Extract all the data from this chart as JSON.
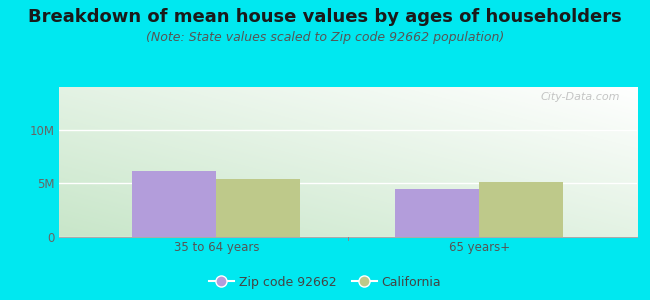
{
  "title": "Breakdown of mean house values by ages of householders",
  "subtitle": "(Note: State values scaled to Zip code 92662 population)",
  "categories": [
    "35 to 64 years",
    "65 years+"
  ],
  "zip_values": [
    6200000,
    4500000
  ],
  "ca_values": [
    5400000,
    5100000
  ],
  "ylim": [
    0,
    14000000
  ],
  "yticks": [
    0,
    5000000,
    10000000
  ],
  "ytick_labels": [
    "0",
    "5M",
    "10M"
  ],
  "bar_width": 0.32,
  "zip_color": "#b39ddb",
  "ca_color": "#bec98a",
  "background_outer": "#00e8f0",
  "legend_zip_label": "Zip code 92662",
  "legend_ca_label": "California",
  "watermark": "City-Data.com",
  "title_fontsize": 13,
  "subtitle_fontsize": 9,
  "tick_fontsize": 8.5,
  "legend_fontsize": 9
}
